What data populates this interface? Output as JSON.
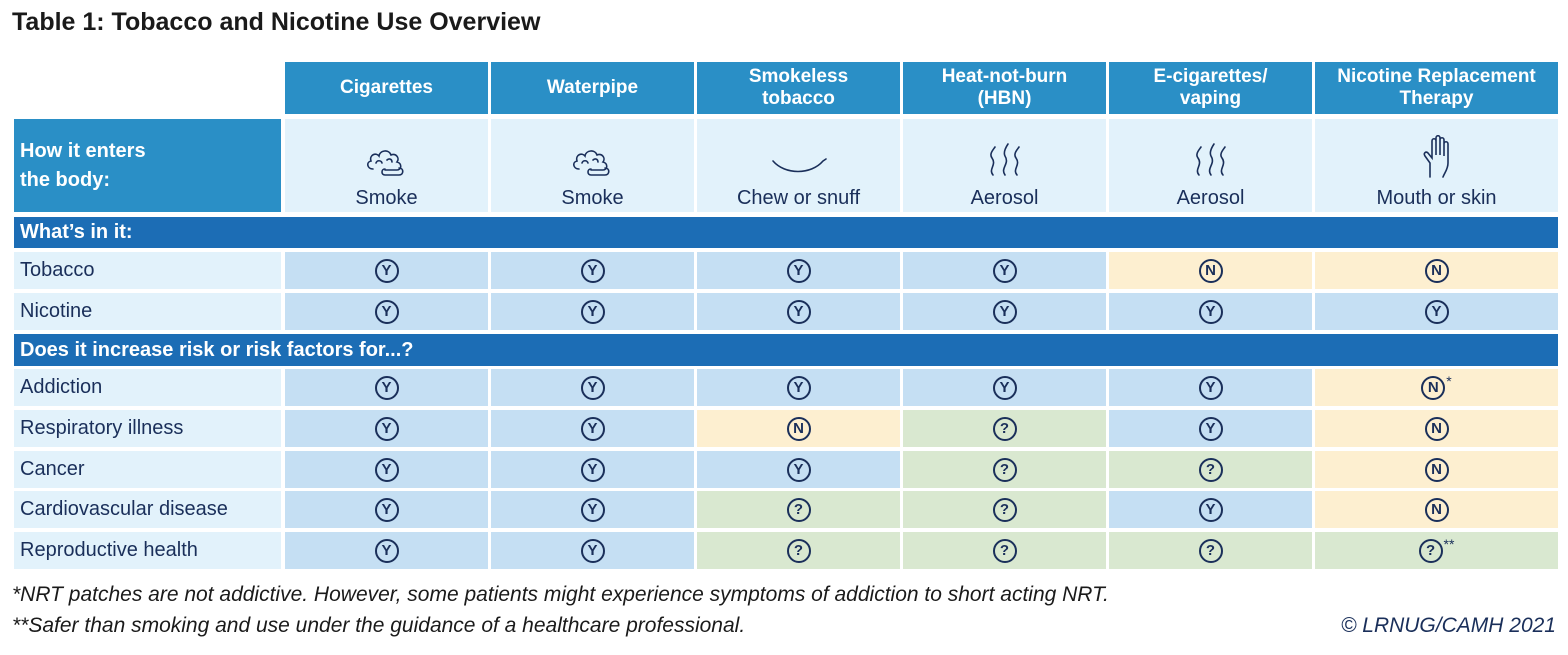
{
  "title": "Table 1: Tobacco and Nicotine Use Overview",
  "table": {
    "columns": [
      "Cigarettes",
      "Waterpipe",
      "Smokeless tobacco",
      "Heat-not-burn (HBN)",
      "E-cigarettes/ vaping",
      "Nicotine Replacement Therapy"
    ],
    "method": {
      "label": "How it enters the body:",
      "values": [
        "Smoke",
        "Smoke",
        "Chew or snuff",
        "Aerosol",
        "Aerosol",
        "Mouth or skin"
      ]
    },
    "sections": [
      {
        "title": "What’s in it:",
        "rows": [
          {
            "label": "Tobacco",
            "cells": [
              "Y",
              "Y",
              "Y",
              "Y",
              "N",
              "N"
            ]
          },
          {
            "label": "Nicotine",
            "cells": [
              "Y",
              "Y",
              "Y",
              "Y",
              "Y",
              "Y"
            ]
          }
        ]
      },
      {
        "title": "Does it increase risk or risk factors for...?",
        "rows": [
          {
            "label": "Addiction",
            "cells": [
              "Y",
              "Y",
              "Y",
              "Y",
              "Y",
              {
                "mark": "N",
                "note": "*"
              }
            ]
          },
          {
            "label": "Respiratory illness",
            "cells": [
              "Y",
              "Y",
              "N",
              "?",
              "Y",
              "N"
            ]
          },
          {
            "label": "Cancer",
            "cells": [
              "Y",
              "Y",
              "Y",
              "?",
              "?",
              "N"
            ]
          },
          {
            "label": "Cardiovascular disease",
            "cells": [
              "Y",
              "Y",
              "?",
              "?",
              "Y",
              "N"
            ]
          },
          {
            "label": "Reproductive health",
            "cells": [
              "Y",
              "Y",
              "?",
              "?",
              "?",
              {
                "mark": "?",
                "note": "**"
              }
            ]
          }
        ]
      }
    ]
  },
  "footnotes": [
    "*NRT patches are not addictive. However, some patients might experience symptoms of addiction to short acting NRT.",
    "**Safer than smoking and use under the guidance of a healthcare professional."
  ],
  "copyright": "© LRNUG/CAMH 2021"
}
